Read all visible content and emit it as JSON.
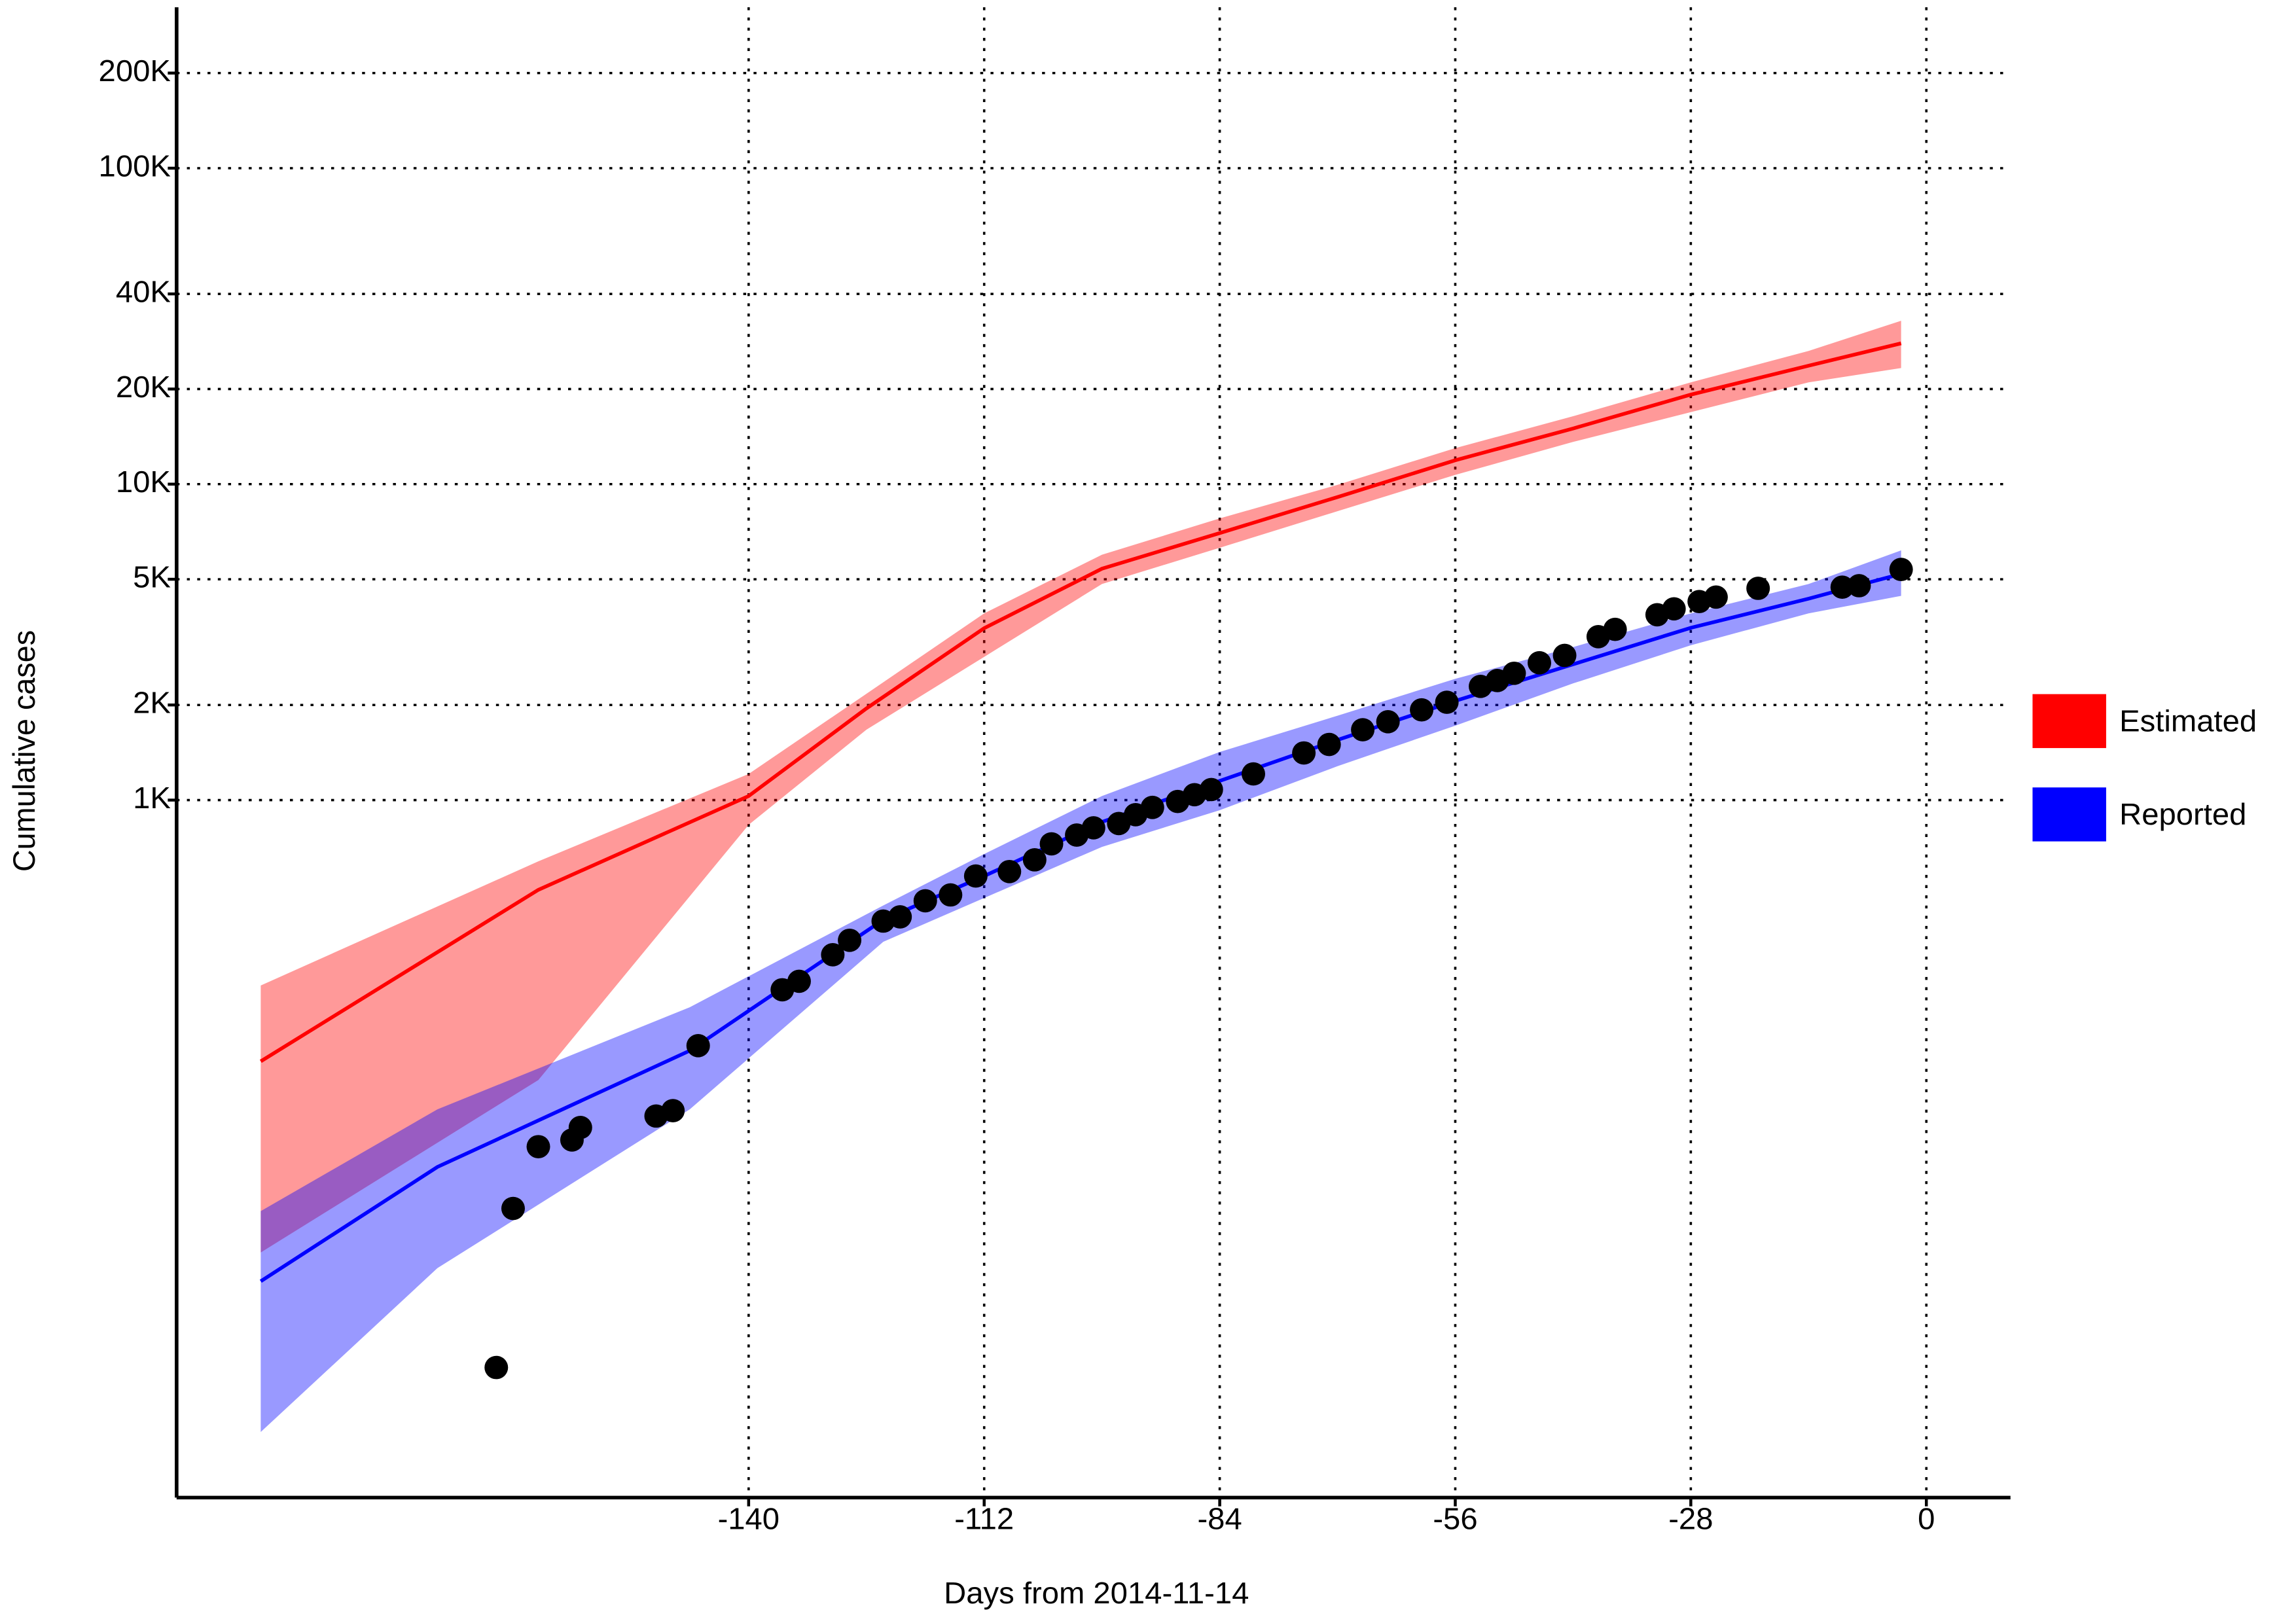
{
  "chart_data": {
    "type": "line",
    "x_label": "Days from 2014-11-14",
    "y_label": "Cumulative cases",
    "log_y": true,
    "grid": true,
    "legend": "right",
    "xlim": [
      -208,
      10
    ],
    "ylim": [
      6.2,
      323000
    ],
    "xticks": [
      -140,
      -112,
      -84,
      -56,
      -28,
      0
    ],
    "yticks": [
      {
        "value": 1000,
        "label": "1K"
      },
      {
        "value": 2000,
        "label": "2K"
      },
      {
        "value": 5000,
        "label": "5K"
      },
      {
        "value": 10000,
        "label": "10K"
      },
      {
        "value": 20000,
        "label": "20K"
      },
      {
        "value": 40000,
        "label": "40K"
      },
      {
        "value": 100000,
        "label": "100K"
      },
      {
        "value": 200000,
        "label": "200K"
      }
    ],
    "series": [
      {
        "name": "Estimated",
        "color": "#ff0000",
        "x": [
          -198,
          -165,
          -140,
          -126,
          -112,
          -98,
          -84,
          -70,
          -56,
          -42,
          -28,
          -14,
          -3
        ],
        "values": [
          149,
          520,
          1030,
          1950,
          3500,
          5400,
          7000,
          9100,
          11900,
          15000,
          19200,
          23700,
          27900
        ],
        "upper": [
          259,
          640,
          1210,
          2170,
          3900,
          5980,
          7790,
          9950,
          13000,
          16400,
          21000,
          26400,
          32900
        ],
        "lower": [
          37,
          130,
          835,
          1670,
          2840,
          4830,
          6290,
          8210,
          10700,
          13600,
          16900,
          21000,
          23300
        ]
      },
      {
        "name": "Reported",
        "color": "#0000ff",
        "x": [
          -198,
          -177,
          -147,
          -124,
          -112,
          -98,
          -84,
          -70,
          -56,
          -42,
          -28,
          -14,
          -3
        ],
        "values": [
          30,
          69,
          161,
          418,
          575,
          853,
          1150,
          1550,
          2060,
          2690,
          3510,
          4340,
          5200
        ],
        "upper": [
          50,
          105,
          221,
          464,
          675,
          1030,
          1420,
          1850,
          2420,
          3050,
          3900,
          4830,
          6170
        ],
        "lower": [
          10,
          33,
          105,
          356,
          490,
          711,
          929,
          1280,
          1720,
          2340,
          3090,
          3900,
          4430
        ]
      }
    ],
    "points": {
      "color": "#000000",
      "x": [
        -170,
        -168,
        -165,
        -161,
        -160,
        -151,
        -149,
        -146,
        -136,
        -134,
        -130,
        -128,
        -124,
        -122,
        -119,
        -116,
        -113,
        -109,
        -106,
        -104,
        -101,
        -99,
        -96,
        -94,
        -92,
        -89,
        -87,
        -85,
        -80,
        -74,
        -71,
        -67,
        -64,
        -60,
        -57,
        -53,
        -51,
        -49,
        -46,
        -43,
        -39,
        -37,
        -32,
        -30,
        -27,
        -25,
        -20,
        -10,
        -8,
        -3
      ],
      "values": [
        16,
        51,
        80,
        84,
        92,
        100,
        104,
        167,
        251,
        267,
        324,
        360,
        414,
        427,
        480,
        501,
        575,
        594,
        647,
        727,
        775,
        817,
        843,
        899,
        948,
        990,
        1040,
        1080,
        1210,
        1410,
        1500,
        1670,
        1770,
        1930,
        2040,
        2290,
        2390,
        2520,
        2720,
        2870,
        3290,
        3470,
        3860,
        4030,
        4250,
        4390,
        4680,
        4720,
        4770,
        5370
      ]
    }
  }
}
